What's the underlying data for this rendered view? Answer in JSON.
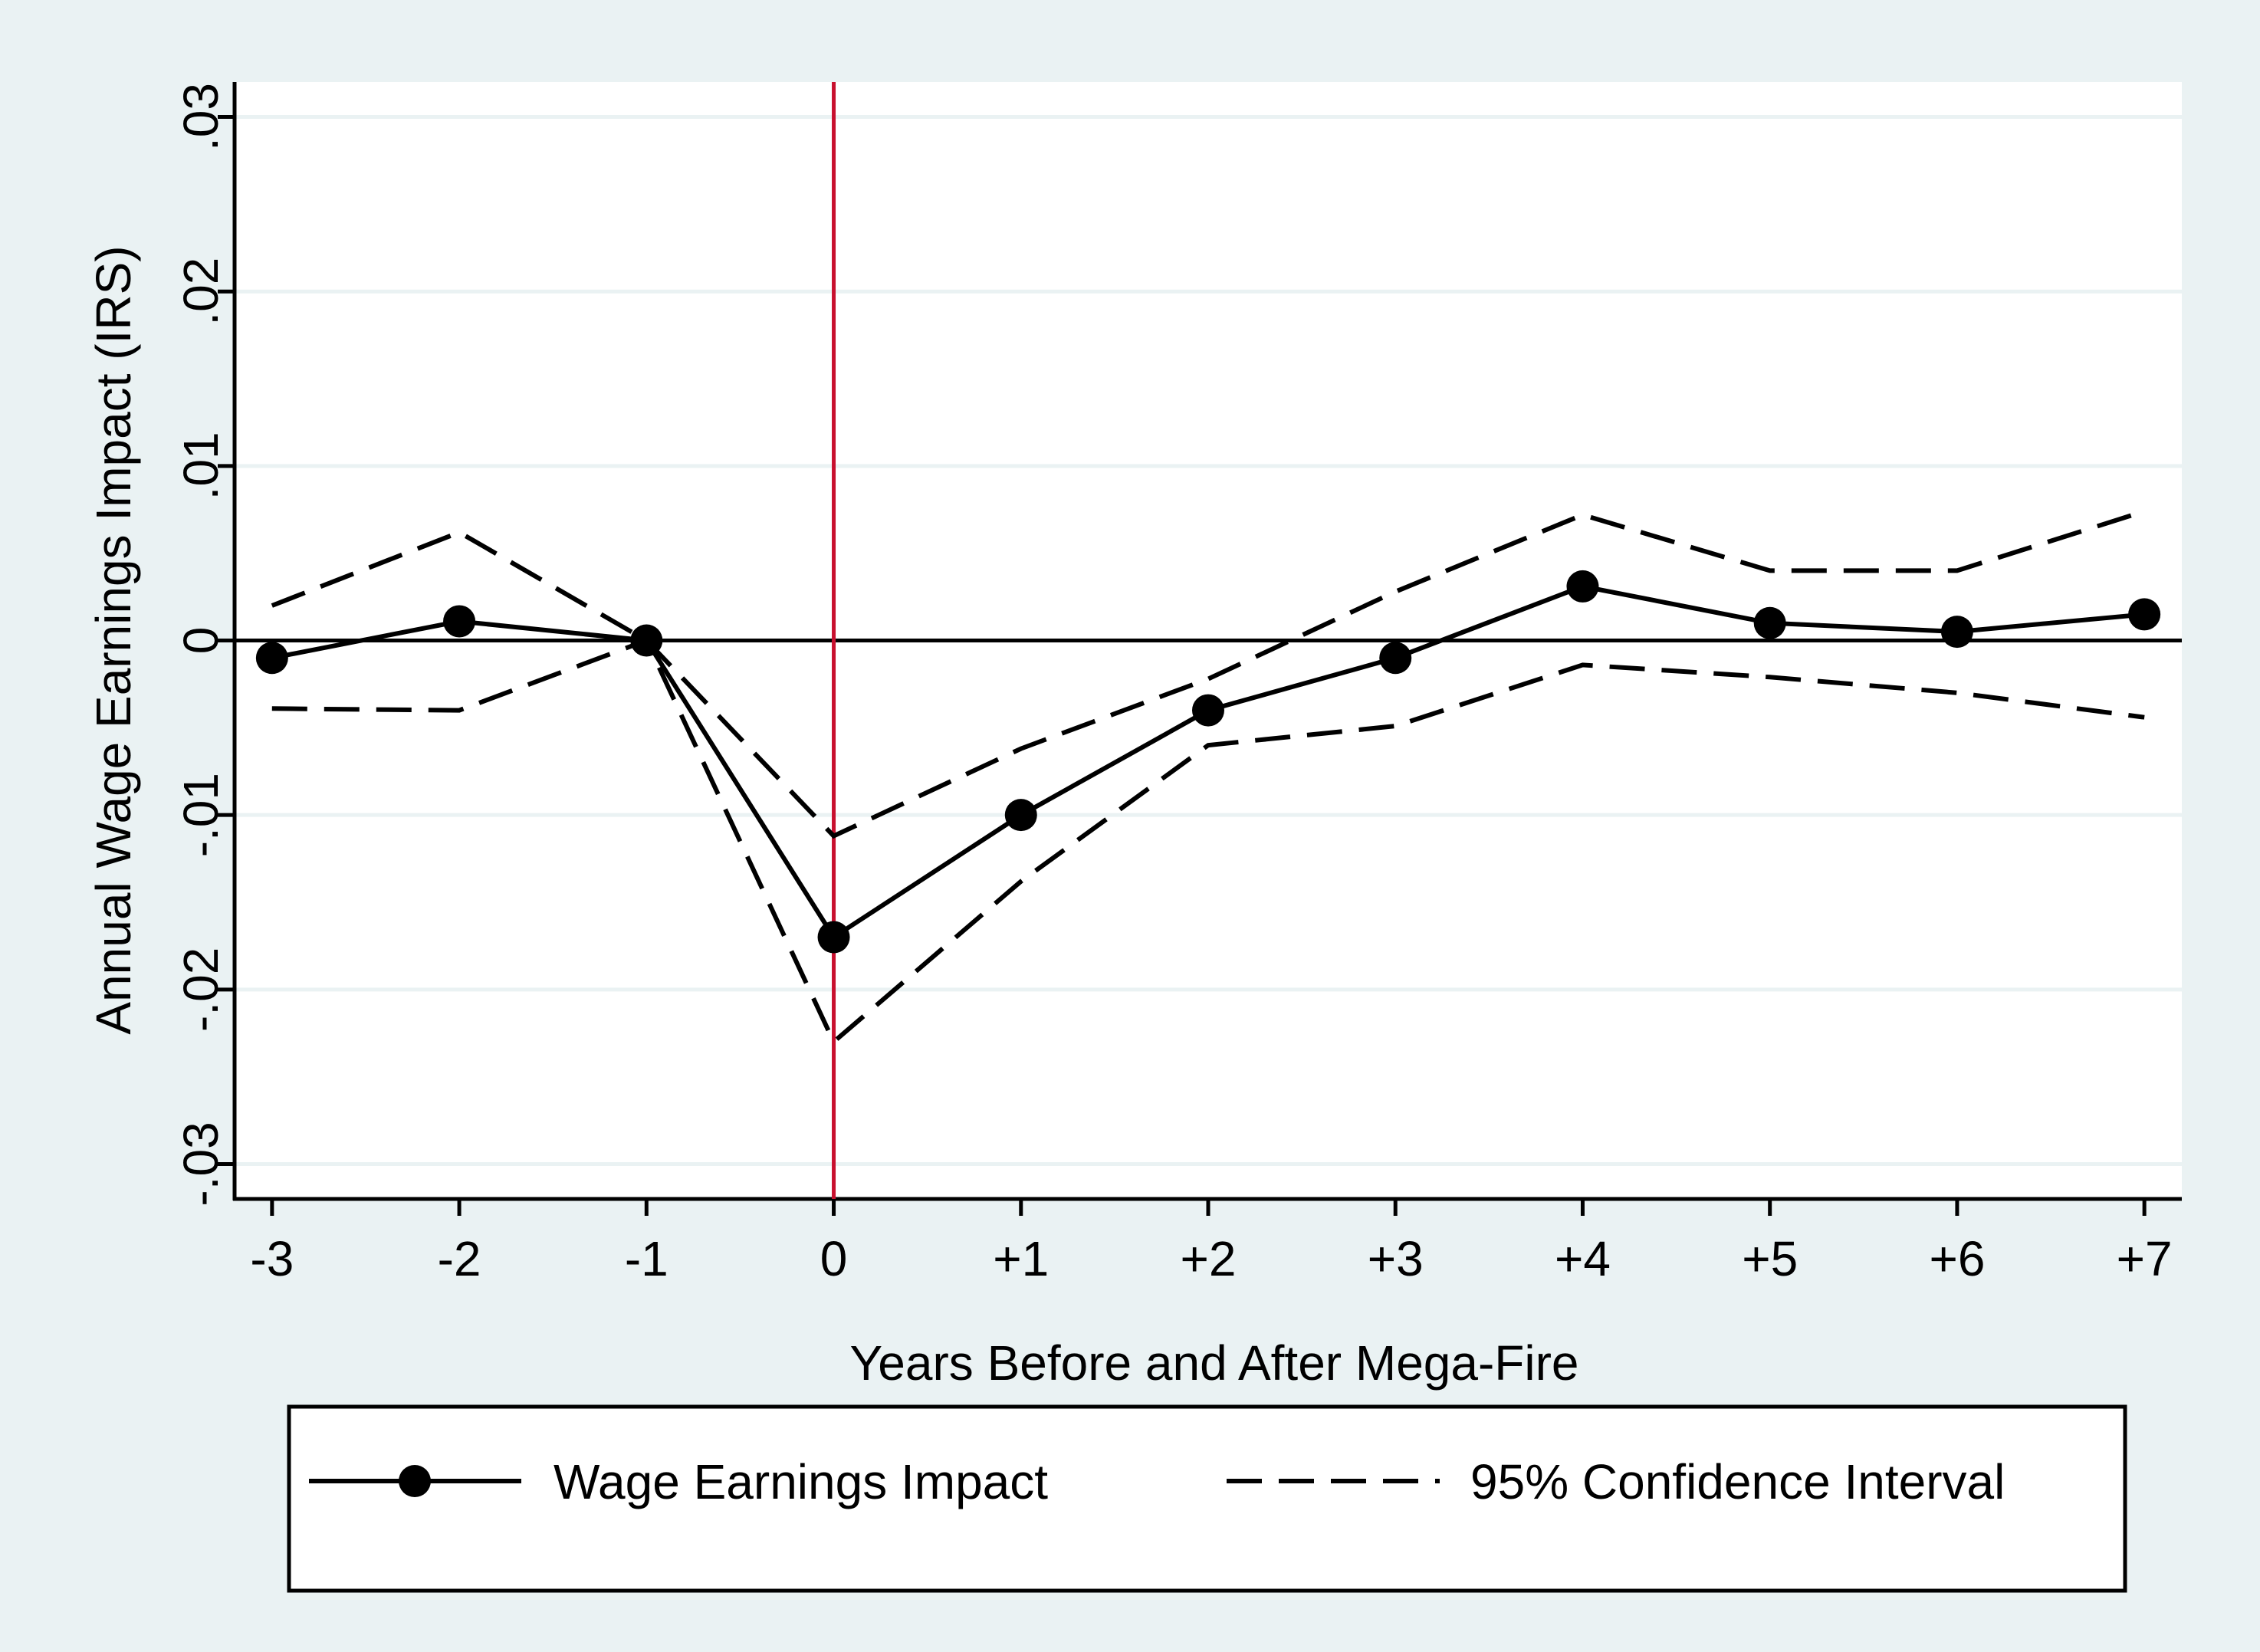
{
  "chart_data": {
    "type": "line",
    "title": "",
    "xlabel": "Years Before and After Mega-Fire",
    "ylabel": "Annual Wage Earnings Impact (IRS)",
    "categories": [
      "-3",
      "-2",
      "-1",
      "0",
      "+1",
      "+2",
      "+3",
      "+4",
      "+5",
      "+6",
      "+7"
    ],
    "x": [
      -3,
      -2,
      -1,
      0,
      1,
      2,
      3,
      4,
      5,
      6,
      7
    ],
    "xlim": [
      -3.2,
      7.2
    ],
    "ylim": [
      -0.032,
      0.032
    ],
    "yticks": [
      -0.03,
      -0.02,
      -0.01,
      0,
      0.01,
      0.02,
      0.03
    ],
    "ytick_labels": [
      "-.03",
      "-.02",
      "-.01",
      "0",
      ".01",
      ".02",
      ".03"
    ],
    "grid": true,
    "reference_lines": {
      "horizontal_at": 0,
      "vertical_at": 0,
      "vertical_color": "#c8102e"
    },
    "series": [
      {
        "name": "Wage Earnings Impact",
        "style": "solid-markers",
        "values": [
          -0.001,
          0.0011,
          0,
          -0.017,
          -0.01,
          -0.004,
          -0.001,
          0.0031,
          0.001,
          0.0005,
          0.0015
        ]
      },
      {
        "name": "95% Confidence Interval",
        "style": "dashed",
        "values": [
          0.002,
          0.0062,
          0,
          -0.0112,
          -0.0062,
          -0.0022,
          0.0028,
          0.0072,
          0.004,
          0.004,
          0.0074
        ]
      },
      {
        "name": "95% Confidence Interval (lower)",
        "style": "dashed",
        "legend": false,
        "values": [
          -0.0039,
          -0.004,
          0,
          -0.023,
          -0.0138,
          -0.006,
          -0.0049,
          -0.0014,
          -0.0021,
          -0.003,
          -0.0044
        ]
      }
    ],
    "legend": {
      "position": "bottom",
      "entries": [
        "Wage Earnings Impact",
        "95% Confidence Interval"
      ]
    },
    "colors": {
      "outer_background": "#eaf2f3",
      "plot_background": "#ffffff",
      "gridline": "#eaf2f3",
      "line": "#000000",
      "vertical_line": "#c8102e"
    }
  }
}
